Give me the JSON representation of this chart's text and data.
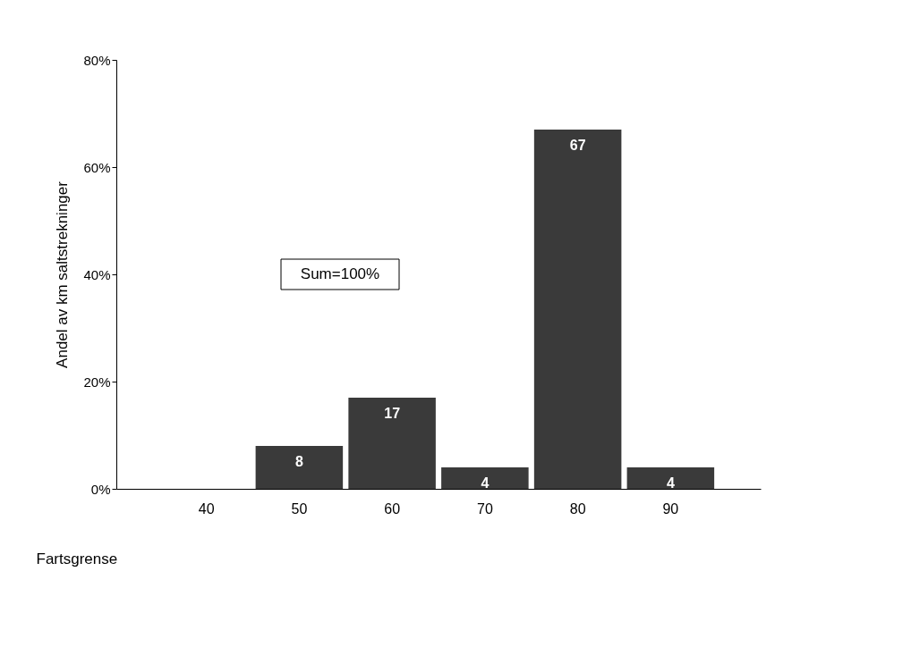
{
  "chart_data": {
    "type": "bar",
    "xlabel": "Fartsgrense",
    "ylabel": "Andel av km saltstrekninger",
    "categories": [
      "40",
      "50",
      "60",
      "70",
      "80",
      "90"
    ],
    "values": [
      null,
      8,
      17,
      4,
      67,
      4
    ],
    "color": "#3a3a3a",
    "ylim": [
      0,
      80
    ],
    "yticks": [
      {
        "value": 0,
        "label": "0%"
      },
      {
        "value": 20,
        "label": "20%"
      },
      {
        "value": 40,
        "label": "40%"
      },
      {
        "value": 60,
        "label": "60%"
      },
      {
        "value": 80,
        "label": "80%"
      }
    ],
    "data_labels": true,
    "grid": false,
    "annotations": [
      "Sum=100%"
    ]
  }
}
